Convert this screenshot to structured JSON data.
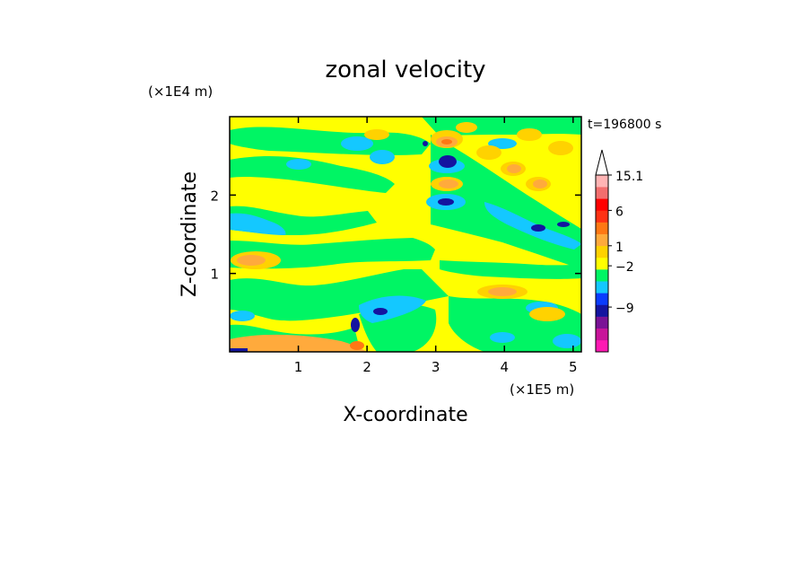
{
  "chart_data": {
    "type": "heatmap",
    "title": "zonal velocity",
    "xlabel": "X-coordinate",
    "ylabel": "Z-coordinate",
    "x_unit": "(×1E5 m)",
    "y_unit": "(×1E4 m)",
    "time_label": "t=196800 s",
    "xlim": [
      0,
      5.12
    ],
    "ylim": [
      0,
      3.0
    ],
    "x_ticks": [
      1,
      2,
      3,
      4,
      5
    ],
    "y_ticks": [
      1,
      2
    ],
    "colorbar": {
      "tick_labels": [
        "15.1",
        "6",
        "1",
        "−2",
        "−9"
      ],
      "colors": [
        "#ff1ab3",
        "#c8149a",
        "#7a1296",
        "#1414a0",
        "#0a3cff",
        "#14c8ff",
        "#00f564",
        "#ffff00",
        "#ffd200",
        "#ffaa3c",
        "#ff7814",
        "#ff3214",
        "#ff0000",
        "#f26e6e",
        "#ffb4b4"
      ],
      "extend_max": true
    },
    "colors": {
      "background": "#ffff00",
      "green": "#00f564",
      "cyan": "#14c8ff",
      "blue": "#1414a0",
      "orange": "#ffaa3c",
      "red_orange": "#ff7814"
    }
  }
}
